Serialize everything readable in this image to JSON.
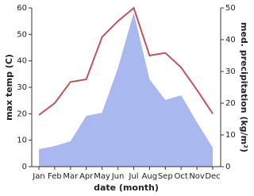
{
  "chart_data": {
    "type": "line-area",
    "categories": [
      "Jan",
      "Feb",
      "Mar",
      "Apr",
      "May",
      "Jun",
      "Jul",
      "Aug",
      "Sep",
      "Oct",
      "Nov",
      "Dec"
    ],
    "x_label": "date (month)",
    "y_label": "max temp (C)",
    "y2_label": "med. precipitation (kg/m²)",
    "ylim": [
      0,
      60
    ],
    "yticks": [
      0,
      10,
      20,
      30,
      40,
      50,
      60
    ],
    "y2lim": [
      0,
      50
    ],
    "y2ticks": [
      0,
      10,
      20,
      30,
      40,
      50
    ],
    "series": [
      {
        "name": "max temp",
        "color": "#c0545a",
        "type": "line",
        "values": [
          19.5,
          24,
          32,
          33,
          49,
          55,
          60,
          42,
          43,
          37.5,
          29,
          20
        ]
      },
      {
        "name": "precipitation",
        "color": "#aab8f0",
        "type": "area",
        "axis": "y2",
        "values": [
          5.5,
          6.5,
          8,
          16,
          17,
          31,
          48.5,
          27.5,
          21,
          22.5,
          14,
          6
        ]
      }
    ]
  }
}
